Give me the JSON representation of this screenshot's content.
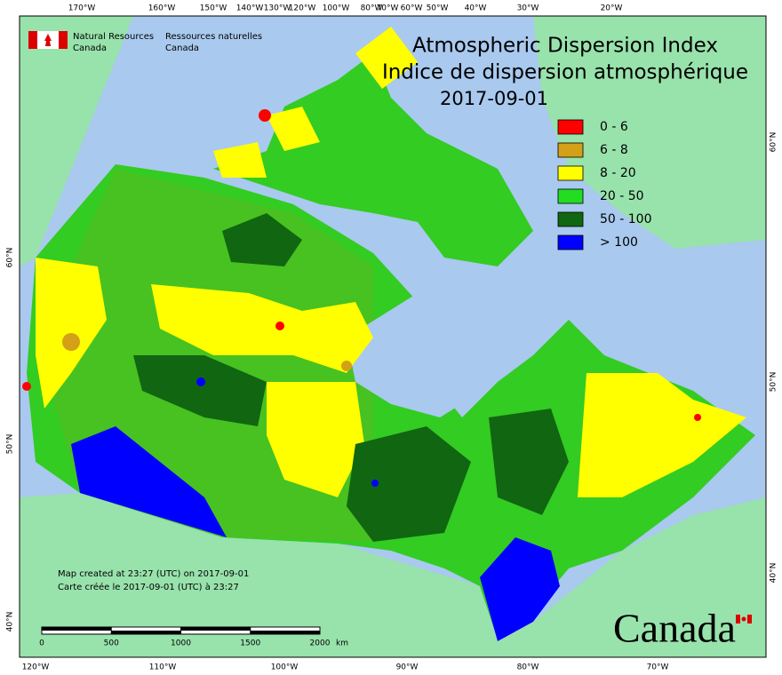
{
  "title": "Atmospheric Dispersion Index",
  "title_fr": "Indice de dispersion atmosphérique",
  "date": "2017-09-01",
  "agency": {
    "en": [
      "Natural Resources",
      "Canada"
    ],
    "fr": [
      "Ressources naturelles",
      "Canada"
    ]
  },
  "legend": [
    {
      "label": "0 - 6",
      "color": "#ff0000"
    },
    {
      "label": "6 - 8",
      "color": "#d4a017"
    },
    {
      "label": "8 - 20",
      "color": "#ffff00"
    },
    {
      "label": "20 - 50",
      "color": "#22dd22"
    },
    {
      "label": "50 - 100",
      "color": "#116611"
    },
    {
      "label": "> 100",
      "color": "#0000ff"
    }
  ],
  "top_labels": [
    "170°W",
    "160°W",
    "150°W",
    "140°W",
    "130°W",
    "120°W",
    "100°W",
    "80°W",
    "70°W",
    "60°W",
    "50°W",
    "40°W",
    "30°W",
    "20°W"
  ],
  "bottom_labels": [
    "120°W",
    "110°W",
    "100°W",
    "90°W",
    "80°W",
    "70°W"
  ],
  "left_labels": [
    "60°N",
    "50°N",
    "40°N"
  ],
  "right_labels": [
    "60°N",
    "50°N",
    "40°N"
  ],
  "footnotes": [
    "Map created at 23:27 (UTC) on 2017-09-01",
    "Carte créée le 2017-09-01 (UTC) à 23:27"
  ],
  "scale_bar": {
    "ticks": [
      0,
      500,
      1000,
      1500,
      2000
    ],
    "unit": "km"
  },
  "wordmark": "Canada"
}
